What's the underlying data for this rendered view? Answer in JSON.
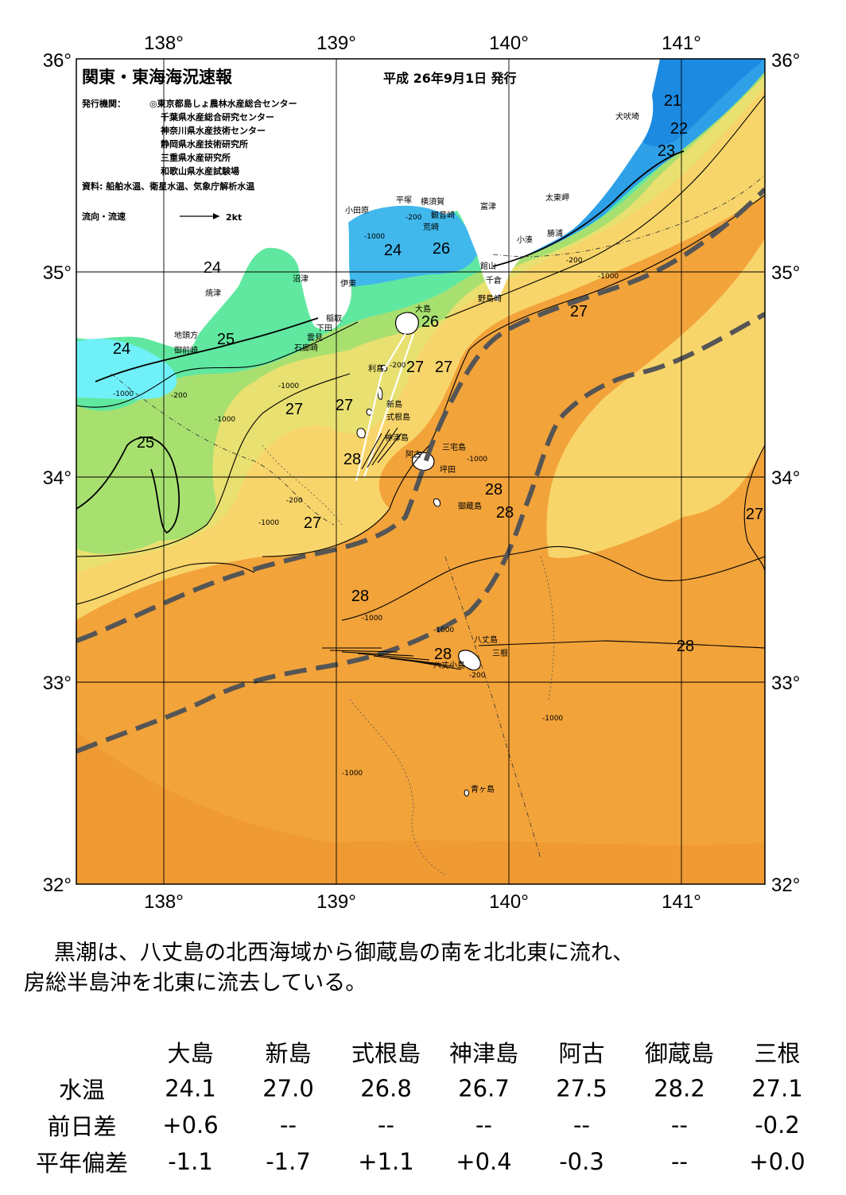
{
  "header": {
    "title": "関東・東海海況速報",
    "date": "平成 26年9月1日 発行",
    "issuers_label": "発行機関：",
    "issuers": [
      "◎東京都島しょ農林水産総合センター",
      "千葉県水産総合研究センター",
      "神奈川県水産技術センター",
      "静岡県水産技術研究所",
      "三重県水産研究所",
      "和歌山県水産試験場"
    ],
    "sources": "資料: 船舶水温、衛星水温、気象庁解析水温",
    "flow_legend": "流向・流速",
    "flow_unit": "2kt"
  },
  "axes": {
    "lon_labels": [
      "138°",
      "139°",
      "140°",
      "141°"
    ],
    "lat_labels": [
      "36°",
      "35°",
      "34°",
      "33°",
      "32°"
    ]
  },
  "isotherm_labels": [
    "21",
    "22",
    "23",
    "24",
    "24",
    "25",
    "24",
    "25",
    "26",
    "26",
    "27",
    "27",
    "27",
    "27",
    "27",
    "27",
    "27",
    "28",
    "28",
    "28",
    "28",
    "28",
    "28",
    "27"
  ],
  "depth_labels": [
    "-200",
    "-1000",
    "-200",
    "-1000",
    "-1000",
    "-1000",
    "-200",
    "-200",
    "-1000",
    "-1000",
    "-200",
    "-1000",
    "-1000",
    "-1000",
    "-1000",
    "-1000",
    "-200"
  ],
  "places": [
    "犬吠埼",
    "太東岬",
    "勝浦",
    "小湊",
    "富津",
    "横須賀",
    "観音崎",
    "平塚",
    "小田原",
    "荒崎",
    "館山",
    "千倉",
    "野島崎",
    "大島",
    "沼津",
    "焼津",
    "伊東",
    "稲取",
    "下田",
    "雲見",
    "石廊崎",
    "地頭方",
    "御前崎",
    "利島",
    "新島",
    "式根島",
    "神津島",
    "三宅島",
    "阿古",
    "坪田",
    "御蔵島",
    "八丈島",
    "三根",
    "八丈小島",
    "青ヶ島"
  ],
  "colors": {
    "kuroshio_path": "#555555",
    "warm_28": "#f2a33a",
    "temp_27": "#f8d56a",
    "temp_26": "#e8e070",
    "temp_25": "#a8e070",
    "temp_24": "#60e8a0",
    "cold_21": "#1c8ae0"
  },
  "summary": {
    "line1": "黒潮は、八丈島の北西海域から御蔵島の南を北北東に流れ、",
    "line2": "房総半島沖を北東に流去している。"
  },
  "table": {
    "headers": [
      "大島",
      "新島",
      "式根島",
      "神津島",
      "阿古",
      "御蔵島",
      "三根"
    ],
    "rows": [
      {
        "label": "水温",
        "values": [
          "24.1",
          "27.0",
          "26.8",
          "26.7",
          "27.5",
          "28.2",
          "27.1"
        ]
      },
      {
        "label": "前日差",
        "values": [
          "+0.6",
          "--",
          "--",
          "--",
          "--",
          "--",
          "-0.2"
        ]
      },
      {
        "label": "平年偏差",
        "values": [
          "-1.1",
          "-1.7",
          "+1.1",
          "+0.4",
          "-0.3",
          "--",
          "+0.0"
        ]
      }
    ]
  }
}
